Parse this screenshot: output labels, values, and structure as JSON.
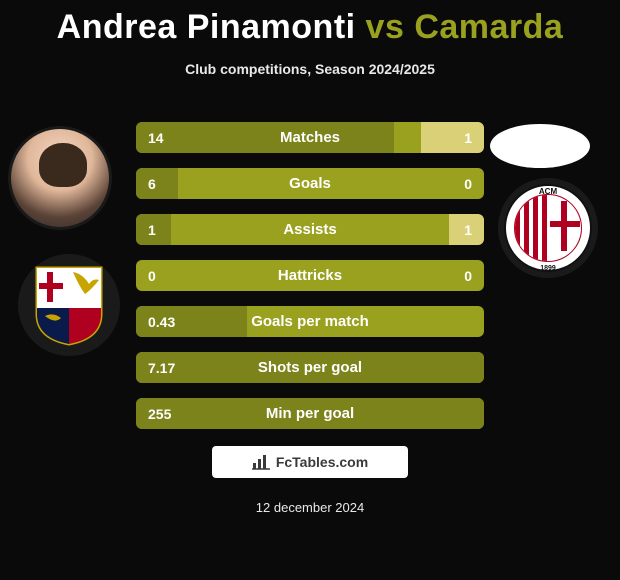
{
  "title": {
    "player1": "Andrea Pinamonti",
    "vs": "vs",
    "player2": "Camarda"
  },
  "subtitle": "Club competitions, Season 2024/2025",
  "date": "12 december 2024",
  "fctables_label": "FcTables.com",
  "colors": {
    "bar_base": "#9aa11f",
    "bar_left": "#7c831a",
    "bar_right": "#d9d078",
    "text": "#ffffff",
    "bg": "#0a0a0a"
  },
  "bars": [
    {
      "label": "Matches",
      "left_val": "14",
      "right_val": "1",
      "left_pct": 74,
      "right_pct": 18
    },
    {
      "label": "Goals",
      "left_val": "6",
      "right_val": "0",
      "left_pct": 12,
      "right_pct": 0
    },
    {
      "label": "Assists",
      "left_val": "1",
      "right_val": "1",
      "left_pct": 10,
      "right_pct": 10
    },
    {
      "label": "Hattricks",
      "left_val": "0",
      "right_val": "0",
      "left_pct": 0,
      "right_pct": 0
    },
    {
      "label": "Goals per match",
      "left_val": "0.43",
      "right_val": "",
      "left_pct": 32,
      "right_pct": 0
    },
    {
      "label": "Shots per goal",
      "left_val": "7.17",
      "right_val": "",
      "left_pct": 100,
      "right_pct": 0
    },
    {
      "label": "Min per goal",
      "left_val": "255",
      "right_val": "",
      "left_pct": 100,
      "right_pct": 0
    }
  ]
}
